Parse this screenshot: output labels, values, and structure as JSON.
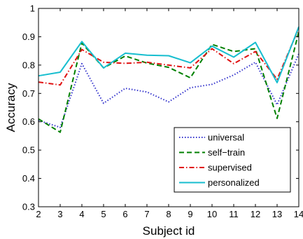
{
  "chart_data": {
    "type": "line",
    "xlabel": "Subject id",
    "ylabel": "Accuracy",
    "x": [
      2,
      3,
      4,
      5,
      6,
      7,
      8,
      9,
      10,
      11,
      12,
      13,
      14
    ],
    "xlim": [
      2,
      14
    ],
    "ylim": [
      0.3,
      1.0
    ],
    "x_ticks": [
      "2",
      "3",
      "4",
      "5",
      "6",
      "7",
      "8",
      "9",
      "10",
      "11",
      "12",
      "13",
      "14"
    ],
    "y_ticks": [
      "0.3",
      "0.4",
      "0.5",
      "0.6",
      "0.7",
      "0.8",
      "0.9",
      "1"
    ],
    "grid": false,
    "legend_position": "bottom-right",
    "series": [
      {
        "name": "universal",
        "style": "dotted",
        "color": "#3333cc",
        "values": [
          0.605,
          0.58,
          0.805,
          0.665,
          0.718,
          0.705,
          0.67,
          0.72,
          0.732,
          0.765,
          0.81,
          0.66,
          0.84
        ]
      },
      {
        "name": "self−train",
        "style": "dashed",
        "color": "#008000",
        "values": [
          0.61,
          0.563,
          0.878,
          0.79,
          0.832,
          0.807,
          0.792,
          0.755,
          0.873,
          0.848,
          0.858,
          0.612,
          0.918
        ]
      },
      {
        "name": "supervised",
        "style": "dashdot",
        "color": "#e01010",
        "values": [
          0.74,
          0.73,
          0.855,
          0.81,
          0.806,
          0.81,
          0.8,
          0.79,
          0.858,
          0.805,
          0.848,
          0.75,
          0.93
        ]
      },
      {
        "name": "personalized",
        "style": "solid",
        "color": "#17becf",
        "values": [
          0.762,
          0.775,
          0.883,
          0.79,
          0.842,
          0.835,
          0.833,
          0.808,
          0.867,
          0.828,
          0.88,
          0.738,
          0.935
        ]
      }
    ]
  }
}
